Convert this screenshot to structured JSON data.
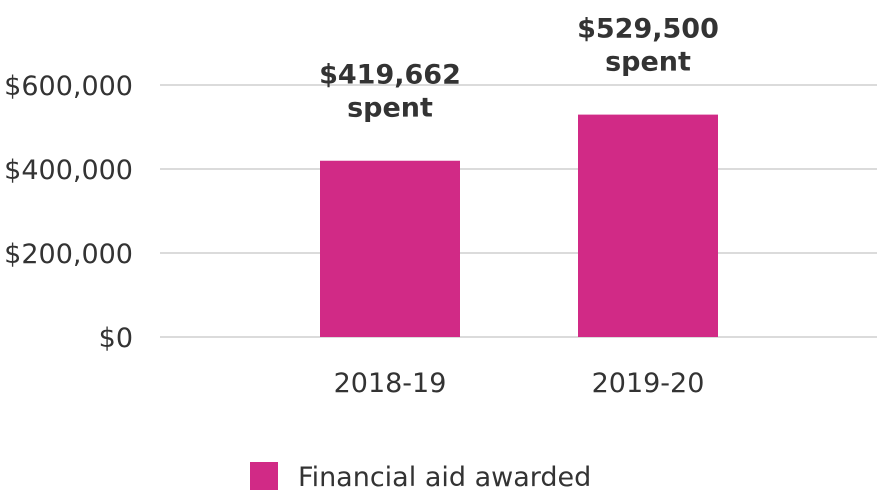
{
  "chart_data": {
    "type": "bar",
    "categories": [
      "2018-19",
      "2019-20"
    ],
    "series": [
      {
        "name": "Financial aid awarded",
        "values": [
          419662,
          529500
        ],
        "color": "#d12a86"
      }
    ],
    "data_labels": [
      [
        "$419,662",
        "spent"
      ],
      [
        "$529,500",
        "spent"
      ]
    ],
    "yticks": [
      {
        "value": 0,
        "label": "$0"
      },
      {
        "value": 200000,
        "label": "$200,000"
      },
      {
        "value": 400000,
        "label": "$400,000"
      },
      {
        "value": 600000,
        "label": "$600,000"
      }
    ],
    "ylim": [
      0,
      600000
    ],
    "grid": true,
    "legend_position": "bottom"
  }
}
